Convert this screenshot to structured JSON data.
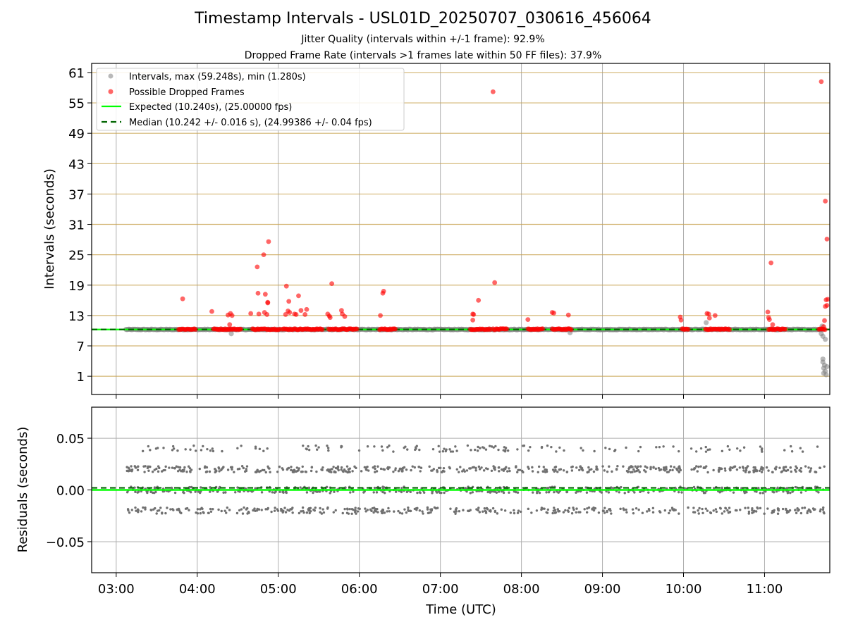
{
  "title": "Timestamp Intervals - USL01D_20250707_030616_456064",
  "subtitle_1": "Jitter Quality (intervals within +/-1 frame): 92.9%",
  "subtitle_2": "Dropped Frame Rate (intervals >1 frames late within 50 FF files): 37.9%",
  "chart_data": [
    {
      "type": "scatter",
      "ylabel": "Intervals (seconds)",
      "ylim": [
        -2.6,
        62.8
      ],
      "yticks": [
        1,
        7,
        13,
        19,
        25,
        31,
        37,
        43,
        49,
        55,
        61
      ],
      "xlim_hours": [
        2.697,
        11.805
      ],
      "grid": true,
      "legend_position": "top-left",
      "legend": [
        "Intervals, max (59.248s), min (1.280s)",
        "Possible Dropped Frames",
        "Expected (10.240s), (25.00000 fps)",
        "Median (10.242 +/- 0.016 s), (24.99386 +/- 0.04 fps)"
      ],
      "expected_value": 10.24,
      "median_value": 10.242,
      "normal_band": {
        "x_range_hours": [
          3.12,
          11.72
        ],
        "y": 10.24
      },
      "normal_outliers": [
        {
          "x": 4.42,
          "y": 9.4
        },
        {
          "x": 8.6,
          "y": 9.6
        },
        {
          "x": 10.28,
          "y": 11.6
        },
        {
          "x": 11.7,
          "y": 9.4
        },
        {
          "x": 11.72,
          "y": 8.9
        },
        {
          "x": 11.75,
          "y": 8.3
        },
        {
          "x": 11.72,
          "y": 3.8
        },
        {
          "x": 11.74,
          "y": 3.2
        },
        {
          "x": 11.73,
          "y": 2.6
        },
        {
          "x": 11.75,
          "y": 2.0
        },
        {
          "x": 11.73,
          "y": 1.6
        },
        {
          "x": 11.76,
          "y": 1.3
        },
        {
          "x": 11.72,
          "y": 4.4
        },
        {
          "x": 11.77,
          "y": 2.9
        },
        {
          "x": 11.71,
          "y": 10.9
        }
      ],
      "dropped_clusters": [
        [
          3.77,
          3.98
        ],
        [
          4.2,
          4.55
        ],
        [
          4.68,
          5.02
        ],
        [
          5.05,
          5.55
        ],
        [
          5.62,
          5.98
        ],
        [
          6.25,
          6.45
        ],
        [
          7.37,
          7.62
        ],
        [
          7.65,
          7.82
        ],
        [
          8.08,
          8.27
        ],
        [
          8.38,
          8.62
        ],
        [
          9.98,
          10.06
        ],
        [
          10.27,
          10.57
        ],
        [
          11.05,
          11.27
        ],
        [
          11.67,
          11.76
        ]
      ],
      "dropped_points": [
        {
          "x": 3.82,
          "y": 16.3
        },
        {
          "x": 4.18,
          "y": 13.8
        },
        {
          "x": 4.38,
          "y": 13.1
        },
        {
          "x": 4.41,
          "y": 13.4
        },
        {
          "x": 4.4,
          "y": 11.2
        },
        {
          "x": 4.43,
          "y": 13.0
        },
        {
          "x": 4.66,
          "y": 13.4
        },
        {
          "x": 4.74,
          "y": 22.6
        },
        {
          "x": 4.75,
          "y": 17.4
        },
        {
          "x": 4.76,
          "y": 13.3
        },
        {
          "x": 4.82,
          "y": 25.0
        },
        {
          "x": 4.83,
          "y": 13.6
        },
        {
          "x": 4.84,
          "y": 17.2
        },
        {
          "x": 4.87,
          "y": 15.6
        },
        {
          "x": 4.87,
          "y": 15.5
        },
        {
          "x": 4.88,
          "y": 27.6
        },
        {
          "x": 4.86,
          "y": 13.2
        },
        {
          "x": 5.09,
          "y": 13.2
        },
        {
          "x": 5.1,
          "y": 18.8
        },
        {
          "x": 5.12,
          "y": 13.9
        },
        {
          "x": 5.13,
          "y": 15.8
        },
        {
          "x": 5.14,
          "y": 13.6
        },
        {
          "x": 5.2,
          "y": 13.3
        },
        {
          "x": 5.22,
          "y": 13.2
        },
        {
          "x": 5.25,
          "y": 16.9
        },
        {
          "x": 5.28,
          "y": 14.0
        },
        {
          "x": 5.33,
          "y": 13.2
        },
        {
          "x": 5.35,
          "y": 14.2
        },
        {
          "x": 5.61,
          "y": 13.3
        },
        {
          "x": 5.63,
          "y": 12.9
        },
        {
          "x": 5.64,
          "y": 12.6
        },
        {
          "x": 5.66,
          "y": 19.3
        },
        {
          "x": 5.78,
          "y": 14.0
        },
        {
          "x": 5.79,
          "y": 13.3
        },
        {
          "x": 5.82,
          "y": 12.8
        },
        {
          "x": 6.26,
          "y": 13.0
        },
        {
          "x": 6.29,
          "y": 17.4
        },
        {
          "x": 6.3,
          "y": 17.8
        },
        {
          "x": 7.4,
          "y": 13.3
        },
        {
          "x": 7.41,
          "y": 13.2
        },
        {
          "x": 7.4,
          "y": 12.1
        },
        {
          "x": 7.47,
          "y": 16.0
        },
        {
          "x": 7.65,
          "y": 57.2
        },
        {
          "x": 7.67,
          "y": 19.5
        },
        {
          "x": 8.08,
          "y": 12.2
        },
        {
          "x": 8.38,
          "y": 13.6
        },
        {
          "x": 8.4,
          "y": 13.5
        },
        {
          "x": 8.58,
          "y": 13.1
        },
        {
          "x": 9.96,
          "y": 12.7
        },
        {
          "x": 9.97,
          "y": 12.1
        },
        {
          "x": 10.29,
          "y": 13.4
        },
        {
          "x": 10.31,
          "y": 13.3
        },
        {
          "x": 10.32,
          "y": 12.5
        },
        {
          "x": 10.39,
          "y": 13.0
        },
        {
          "x": 11.04,
          "y": 13.7
        },
        {
          "x": 11.05,
          "y": 12.6
        },
        {
          "x": 11.06,
          "y": 12.2
        },
        {
          "x": 11.08,
          "y": 23.4
        },
        {
          "x": 11.1,
          "y": 11.2
        },
        {
          "x": 11.7,
          "y": 59.2
        },
        {
          "x": 11.75,
          "y": 35.6
        },
        {
          "x": 11.77,
          "y": 28.1
        },
        {
          "x": 11.76,
          "y": 16.1
        },
        {
          "x": 11.77,
          "y": 15.0
        },
        {
          "x": 11.75,
          "y": 14.8
        },
        {
          "x": 11.74,
          "y": 12.0
        },
        {
          "x": 11.78,
          "y": 16.2
        },
        {
          "x": 11.73,
          "y": 10.8
        }
      ]
    },
    {
      "type": "scatter",
      "xlabel": "Time (UTC)",
      "ylabel": "Residuals (seconds)",
      "ylim": [
        -0.08,
        0.08
      ],
      "yticks": [
        0.05,
        0.0,
        -0.05
      ],
      "ytick_labels": [
        "0.05",
        "0.00",
        "−0.05"
      ],
      "xlim_hours": [
        2.697,
        11.805
      ],
      "x_ticks_hours": [
        3,
        4,
        5,
        6,
        7,
        8,
        9,
        10,
        11
      ],
      "x_tick_labels": [
        "03:00",
        "04:00",
        "05:00",
        "06:00",
        "07:00",
        "08:00",
        "09:00",
        "10:00",
        "11:00"
      ],
      "grid": true,
      "expected_residual": 0.0,
      "median_residual": 0.002,
      "residual_levels": [
        -0.02,
        0.0,
        0.02,
        0.04
      ],
      "x_range_hours": [
        3.12,
        11.76
      ],
      "point_count": 1500
    }
  ],
  "colors": {
    "normal": "#808080",
    "dropped": "#ff0000",
    "expected": "#00ff00",
    "median": "#006400",
    "tick_grid_top": "#c8a250",
    "grid": "#b0b0b0",
    "residual_points": "#707070"
  }
}
